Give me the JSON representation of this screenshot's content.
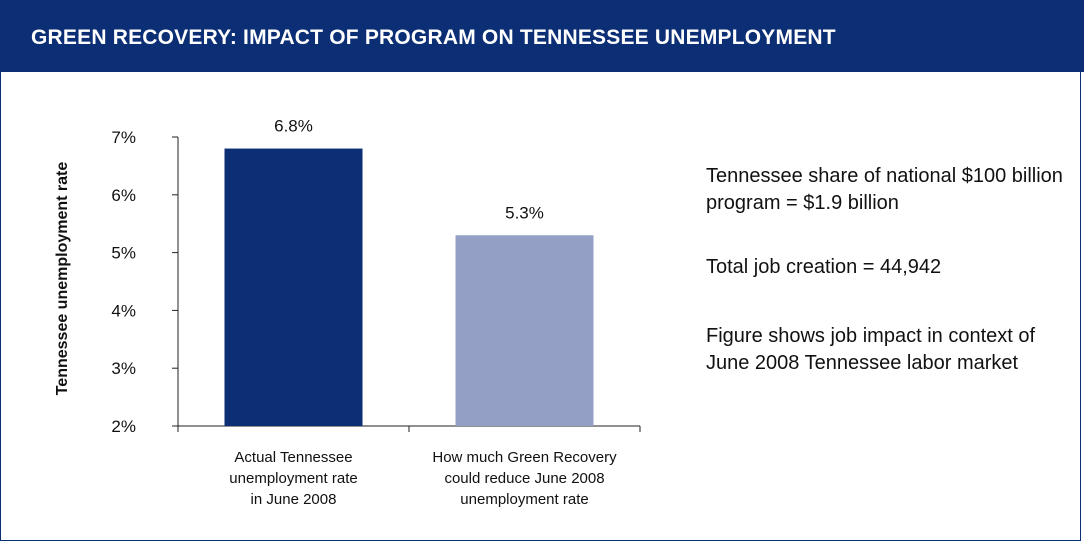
{
  "header": {
    "title": "GREEN RECOVERY: IMPACT OF PROGRAM ON TENNESSEE UNEMPLOYMENT"
  },
  "side_text": {
    "share": "Tennessee share of national $100 billion program = $1.9 billion",
    "jobs": "Total job creation = 44,942",
    "note": "Figure shows job impact in context of June 2008 Tennessee labor market"
  },
  "chart_data": {
    "type": "bar",
    "ylabel": "Tennessee unemployment rate",
    "ylim": [
      2,
      7
    ],
    "yticks": [
      "2%",
      "3%",
      "4%",
      "5%",
      "6%",
      "7%"
    ],
    "categories": [
      [
        "Actual Tennessee",
        "unemployment rate",
        "in June 2008"
      ],
      [
        "How much Green Recovery",
        "could reduce June 2008",
        "unemployment rate"
      ]
    ],
    "values": [
      6.8,
      5.3
    ],
    "data_labels": [
      "6.8%",
      "5.3%"
    ],
    "colors": [
      "#0b2e74",
      "#949fc6"
    ]
  }
}
